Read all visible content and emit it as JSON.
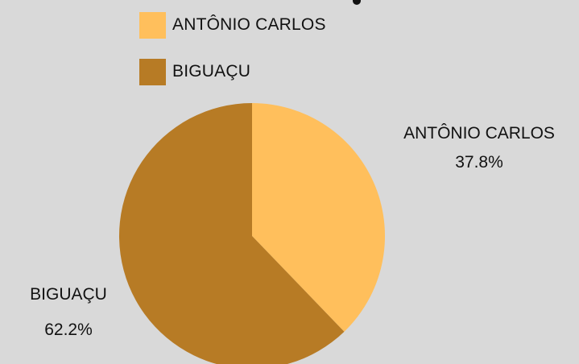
{
  "chart_data": {
    "type": "pie",
    "categories": [
      "ANTÔNIO CARLOS",
      "BIGUAÇU"
    ],
    "values": [
      37.8,
      62.2
    ],
    "colors": [
      "#ffbf5c",
      "#b77b25"
    ],
    "slice_labels": [
      "37.8%",
      "62.2%"
    ],
    "legend": {
      "placement": "top",
      "entries": [
        "ANTÔNIO CARLOS",
        "BIGUAÇU"
      ]
    },
    "title": "",
    "background": "#d9d9d9"
  }
}
